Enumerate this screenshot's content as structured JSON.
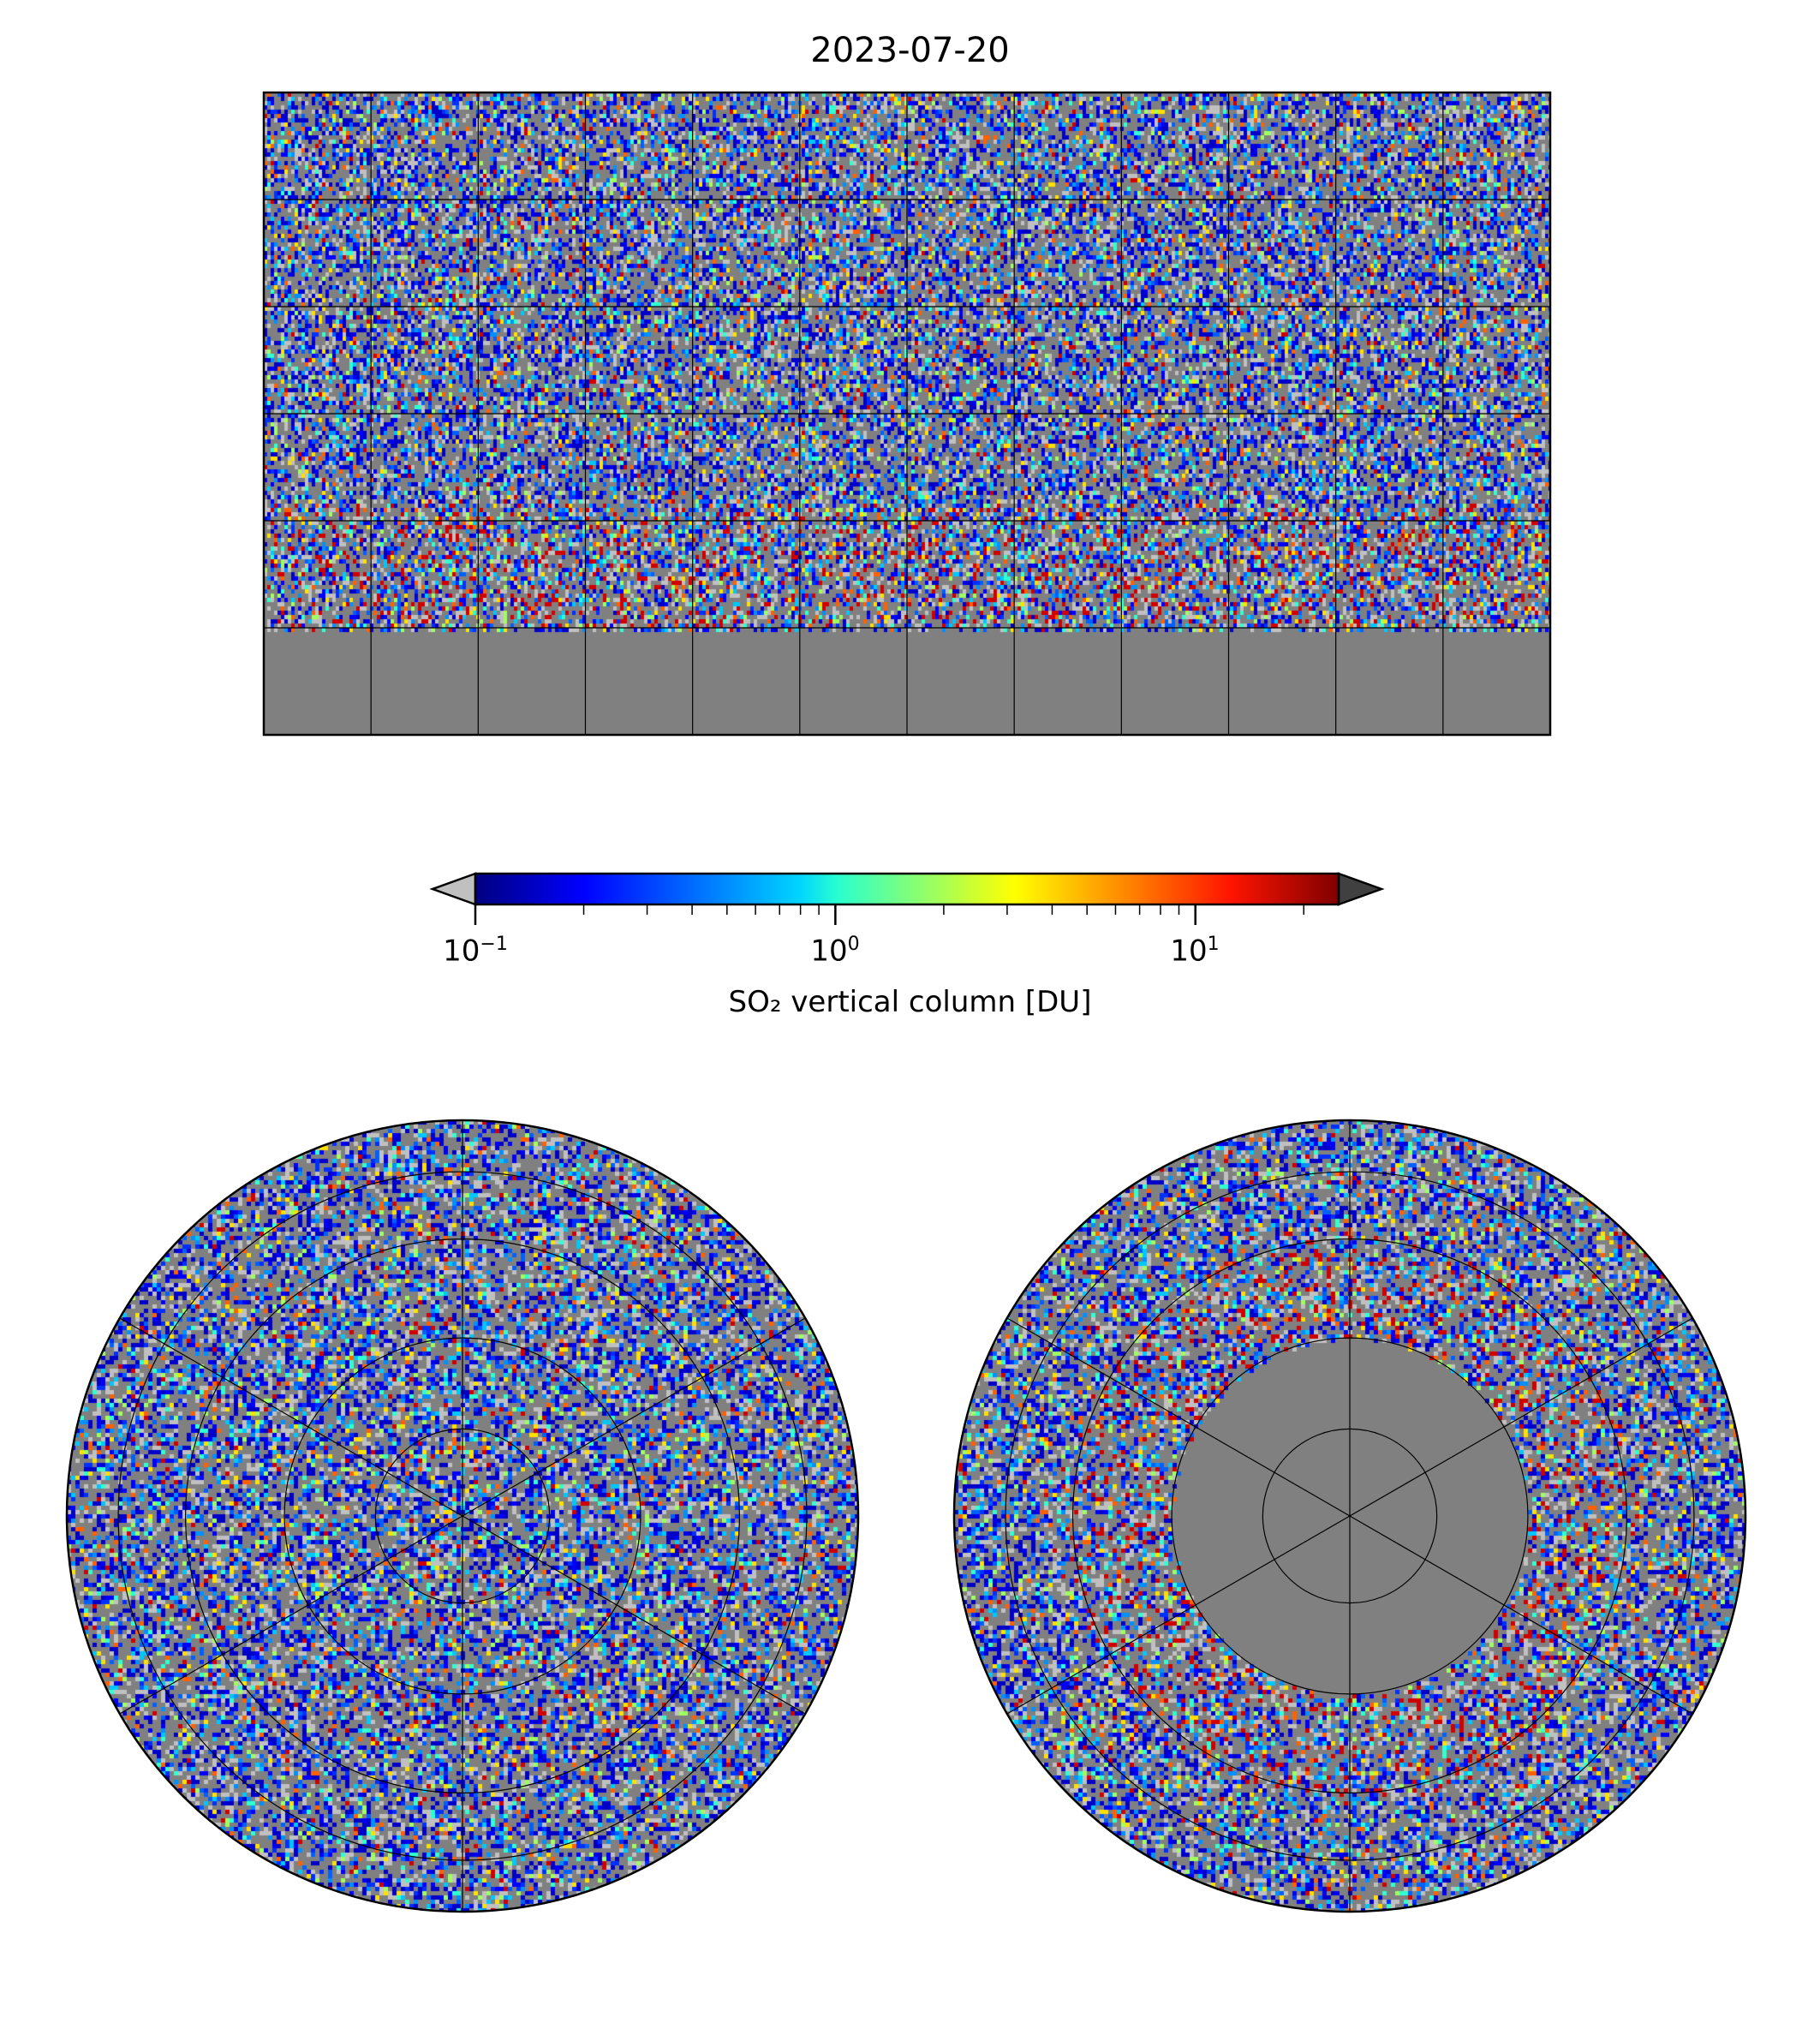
{
  "title": "2023-07-20",
  "colorbar": {
    "label": "SO₂ vertical column [DU]",
    "scale": "log",
    "range": [
      0.1,
      25
    ],
    "ticks": [
      {
        "base": "10",
        "exp": "−1"
      },
      {
        "base": "10",
        "exp": "0"
      },
      {
        "base": "10",
        "exp": "1"
      }
    ],
    "under_color": "#c0c0c0",
    "over_color": "#404040",
    "colormap": "jet"
  },
  "chart_data": {
    "type": "heatmap",
    "title": "2023-07-20",
    "panels": [
      "global plate carree",
      "north polar stereographic",
      "south polar stereographic"
    ],
    "colorbar_label": "SO₂ vertical column [DU]",
    "clim": [
      0.1,
      25
    ],
    "gridlines_deg": 30
  }
}
